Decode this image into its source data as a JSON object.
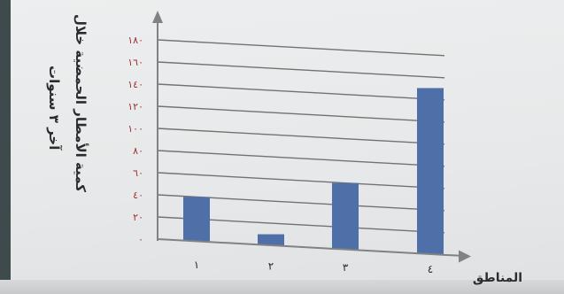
{
  "chart_data": {
    "type": "bar",
    "title": "كمية الأمطار الحمضية خلال",
    "subtitle": "آخر ٣ سنوات",
    "xlabel": "المناطق",
    "ylabel": "",
    "categories": [
      "١",
      "٢",
      "٣",
      "٤"
    ],
    "values": [
      40,
      10,
      60,
      150
    ],
    "ylim": [
      0,
      180
    ],
    "yticks": [
      0,
      20,
      40,
      60,
      80,
      100,
      120,
      140,
      160,
      180
    ],
    "ytick_labels": [
      "٠",
      "٢٠",
      "٤٠",
      "٦٠",
      "٨٠",
      "١٠٠",
      "١٢٠",
      "١٤٠",
      "١٦٠",
      "١٨٠"
    ],
    "grid": true,
    "legend": "none",
    "colors": {
      "bar": "#4e6fa8",
      "grid": "#707274",
      "axis": "#808284",
      "tick_label": "#a0302f"
    }
  }
}
